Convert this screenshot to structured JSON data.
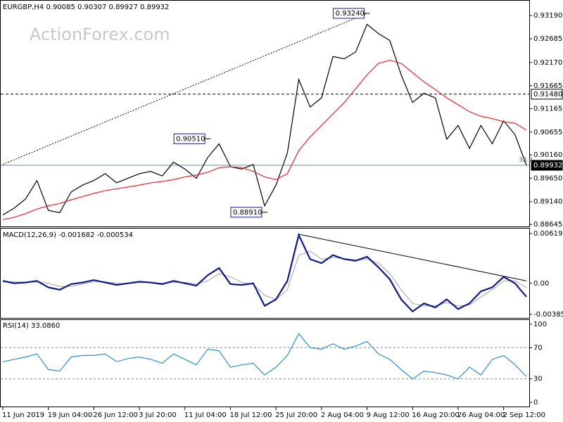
{
  "chart_data": [
    {
      "type": "line",
      "title": "EURGBP,H4  0.90085 0.90307 0.89927 0.89932",
      "watermark": "ActionForex.com",
      "categories": [
        "11 Jun 2019",
        null,
        null,
        null,
        "19 Jun 04:00",
        null,
        null,
        null,
        "26 Jun 12:00",
        null,
        null,
        null,
        "3 Jul 20:00",
        null,
        null,
        null,
        "11 Jul 04:00",
        null,
        null,
        null,
        "18 Jul 12:00",
        null,
        null,
        null,
        "25 Jul 20:00",
        null,
        null,
        null,
        "2 Aug 04:00",
        null,
        null,
        null,
        "9 Aug 12:00",
        null,
        null,
        null,
        "16 Aug 20:00",
        null,
        null,
        null,
        "26 Aug 04:00",
        null,
        null,
        null,
        "2 Sep 12:00",
        null,
        null
      ],
      "ylim": [
        0.886,
        0.935
      ],
      "yticks": [
        {
          "value": 0.9319,
          "label": "0.93190"
        },
        {
          "value": 0.92685,
          "label": "0.92685"
        },
        {
          "value": 0.9217,
          "label": "0.92170"
        },
        {
          "value": 0.91665,
          "label": "0.91665"
        },
        {
          "value": 0.91165,
          "label": "0.91165"
        },
        {
          "value": 0.90655,
          "label": "0.90655"
        },
        {
          "value": 0.9016,
          "label": "0.90160"
        },
        {
          "value": 0.8965,
          "label": "0.89650"
        },
        {
          "value": 0.8914,
          "label": "0.89140"
        },
        {
          "value": 0.88645,
          "label": "0.88645"
        }
      ],
      "series": [
        {
          "color": "#000000",
          "values": [
            0.8885,
            0.89,
            0.892,
            0.896,
            0.8895,
            0.889,
            0.8935,
            0.895,
            0.896,
            0.8975,
            0.8955,
            0.8965,
            0.8975,
            0.898,
            0.897,
            0.9,
            0.8985,
            0.8965,
            0.901,
            0.904,
            0.899,
            0.8985,
            0.8995,
            0.8905,
            0.895,
            0.902,
            0.918,
            0.912,
            0.914,
            0.923,
            0.9225,
            0.924,
            0.93,
            0.928,
            0.9265,
            0.919,
            0.913,
            0.915,
            0.914,
            0.905,
            0.908,
            0.903,
            0.908,
            0.904,
            0.909,
            0.906,
            0.89932
          ]
        },
        {
          "color": "#e8262b",
          "values": [
            0.8875,
            0.888,
            0.8888,
            0.8898,
            0.8905,
            0.891,
            0.8918,
            0.8925,
            0.8932,
            0.8938,
            0.8942,
            0.8946,
            0.895,
            0.8955,
            0.8958,
            0.8962,
            0.8968,
            0.8972,
            0.8978,
            0.8988,
            0.899,
            0.8988,
            0.898,
            0.8968,
            0.8962,
            0.8975,
            0.9025,
            0.9055,
            0.908,
            0.9105,
            0.913,
            0.916,
            0.919,
            0.9215,
            0.9222,
            0.9215,
            0.9195,
            0.9175,
            0.9158,
            0.914,
            0.9125,
            0.911,
            0.91,
            0.9095,
            0.9088,
            0.9085,
            0.907
          ]
        }
      ],
      "annotations": [
        {
          "label": "0.93240",
          "value": 0.9324,
          "index": 32
        },
        {
          "label": "0.90510",
          "value": 0.9051,
          "index": 18
        },
        {
          "label": "0.88910",
          "value": 0.8891,
          "index": 23
        }
      ],
      "hlines": [
        {
          "value": 0.9148,
          "label": "0.91480",
          "style": "dashed"
        },
        {
          "value": 0.89932,
          "label": "0.89932",
          "style": "solid"
        }
      ],
      "fib": {
        "label": "38.2",
        "value": 0.9005
      },
      "trendlines": [
        {
          "from": [
            0,
            0.8995
          ],
          "to": [
            32,
            0.9324
          ],
          "style": "dotted"
        }
      ]
    },
    {
      "type": "line",
      "title": "MACD(12,26,9) -0.001682 -0.000534",
      "ylim": [
        -0.0043,
        0.0068
      ],
      "yticks": [
        0.006195,
        {
          "value": 0,
          "label": "0.00"
        },
        -0.003851
      ],
      "series": [
        {
          "color": "#b0b0b0",
          "values": [
            0.0002,
            0.0002,
            0.0001,
            0.0002,
            0.0,
            -0.0004,
            -0.0004,
            -0.0001,
            0.0002,
            0.0002,
            0.0,
            0.0,
            0.0001,
            0.0001,
            0.0,
            0.0001,
            0.0001,
            -0.0001,
            0.0003,
            0.0012,
            0.0008,
            0.0001,
            -0.0001,
            -0.0015,
            -0.002,
            -0.0008,
            0.0035,
            0.004,
            0.003,
            0.0032,
            0.0031,
            0.0029,
            0.003,
            0.0025,
            0.0012,
            -0.0008,
            -0.0025,
            -0.0028,
            -0.0028,
            -0.0024,
            -0.0028,
            -0.0027,
            -0.0017,
            -0.0008,
            0.0003,
            0.0003,
            -0.000534
          ]
        },
        {
          "color": "#0b1a8c",
          "values": [
            0.0003,
            0.0,
            0.0001,
            0.0003,
            -0.0005,
            -0.0008,
            -0.0001,
            0.0001,
            0.0004,
            0.0001,
            -0.0002,
            0.0,
            0.0002,
            0.0001,
            -0.0001,
            0.0003,
            0.0,
            -0.0003,
            0.001,
            0.0019,
            -0.0001,
            -0.0002,
            0.0,
            -0.0028,
            -0.002,
            0.0003,
            0.006,
            0.003,
            0.0025,
            0.0035,
            0.003,
            0.0028,
            0.0033,
            0.002,
            0.0005,
            -0.002,
            -0.0035,
            -0.0025,
            -0.003,
            -0.002,
            -0.0032,
            -0.0025,
            -0.001,
            -0.0005,
            0.0008,
            0.0,
            -0.001682
          ]
        }
      ],
      "trendlines": [
        {
          "from": [
            26,
            0.0061
          ],
          "to": [
            46,
            0.0003
          ],
          "style": "solid"
        }
      ]
    },
    {
      "type": "line",
      "title": "RSI(14) 33.0860",
      "ylim": [
        -5.4,
        105.4
      ],
      "yticks": [
        100,
        70,
        30,
        0
      ],
      "levels": [
        70,
        30
      ],
      "series": [
        {
          "color": "#2a8fd6",
          "values": [
            52,
            55,
            58,
            62,
            42,
            40,
            58,
            60,
            60,
            62,
            52,
            56,
            58,
            55,
            50,
            62,
            55,
            48,
            68,
            66,
            45,
            48,
            50,
            35,
            45,
            60,
            88,
            70,
            68,
            75,
            68,
            72,
            78,
            62,
            55,
            42,
            30,
            40,
            38,
            35,
            30,
            45,
            35,
            55,
            60,
            48,
            33.086
          ]
        }
      ]
    }
  ]
}
